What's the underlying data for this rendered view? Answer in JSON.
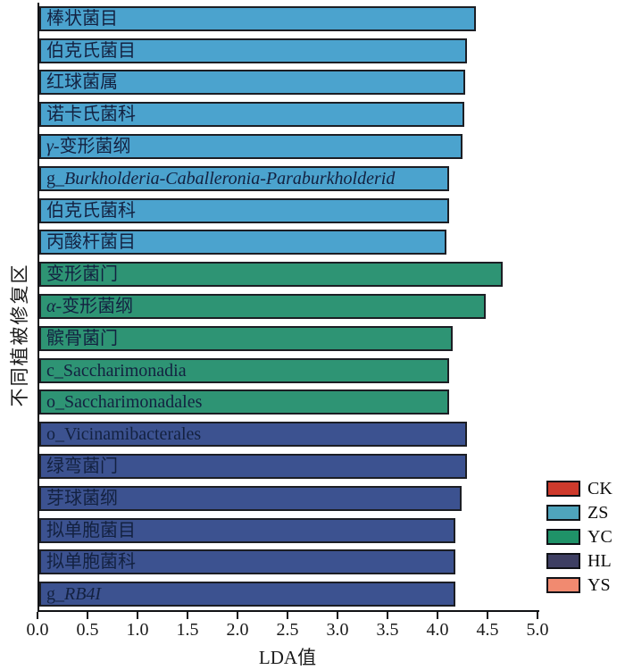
{
  "chart_data": {
    "type": "bar",
    "orientation": "horizontal",
    "title": "",
    "xlabel": "LDA值",
    "ylabel": "不同植被修复区",
    "xlim": [
      0.0,
      5.0
    ],
    "xtick_labels": [
      "0.0",
      "0.5",
      "1.0",
      "1.5",
      "2.0",
      "2.5",
      "3.0",
      "3.5",
      "4.0",
      "4.5",
      "5.0"
    ],
    "grid": false,
    "legend_position": "right-bottom",
    "group_bar_colors": {
      "ZS": "#4BA3CE",
      "YC": "#2E9474",
      "HL": "#3C5290"
    },
    "bars": [
      {
        "parts": [
          {
            "t": "棒状菌目",
            "i": false
          }
        ],
        "value": 4.37,
        "group": "ZS"
      },
      {
        "parts": [
          {
            "t": "伯克氏菌目",
            "i": false
          }
        ],
        "value": 4.28,
        "group": "ZS"
      },
      {
        "parts": [
          {
            "t": "红球菌属",
            "i": false
          }
        ],
        "value": 4.26,
        "group": "ZS"
      },
      {
        "parts": [
          {
            "t": "诺卡氏菌科",
            "i": false
          }
        ],
        "value": 4.25,
        "group": "ZS"
      },
      {
        "parts": [
          {
            "t": "γ-",
            "i": true
          },
          {
            "t": "变形菌纲",
            "i": false
          }
        ],
        "value": 4.23,
        "group": "ZS"
      },
      {
        "parts": [
          {
            "t": "g_",
            "i": false
          },
          {
            "t": "Burkholderia-Caballeronia-Paraburkholderid",
            "i": true
          }
        ],
        "value": 4.1,
        "group": "ZS"
      },
      {
        "parts": [
          {
            "t": "伯克氏菌科",
            "i": false
          }
        ],
        "value": 4.1,
        "group": "ZS"
      },
      {
        "parts": [
          {
            "t": "丙酸杆菌目",
            "i": false
          }
        ],
        "value": 4.07,
        "group": "ZS"
      },
      {
        "parts": [
          {
            "t": "变形菌门",
            "i": false
          }
        ],
        "value": 4.63,
        "group": "YC"
      },
      {
        "parts": [
          {
            "t": "α-",
            "i": true
          },
          {
            "t": "变形菌纲",
            "i": false
          }
        ],
        "value": 4.46,
        "group": "YC"
      },
      {
        "parts": [
          {
            "t": "髌骨菌门",
            "i": false
          }
        ],
        "value": 4.13,
        "group": "YC"
      },
      {
        "parts": [
          {
            "t": "c_Saccharimonadia",
            "i": false
          }
        ],
        "value": 4.1,
        "group": "YC"
      },
      {
        "parts": [
          {
            "t": "o_Saccharimonadales",
            "i": false
          }
        ],
        "value": 4.1,
        "group": "YC"
      },
      {
        "parts": [
          {
            "t": "o_Vicinamibacterales",
            "i": false
          }
        ],
        "value": 4.28,
        "group": "HL"
      },
      {
        "parts": [
          {
            "t": "绿弯菌门",
            "i": false
          }
        ],
        "value": 4.28,
        "group": "HL"
      },
      {
        "parts": [
          {
            "t": "芽球菌纲",
            "i": false
          }
        ],
        "value": 4.22,
        "group": "HL"
      },
      {
        "parts": [
          {
            "t": "拟单胞菌目",
            "i": false
          }
        ],
        "value": 4.16,
        "group": "HL"
      },
      {
        "parts": [
          {
            "t": "拟单胞菌科",
            "i": false
          }
        ],
        "value": 4.16,
        "group": "HL"
      },
      {
        "parts": [
          {
            "t": "g_",
            "i": false
          },
          {
            "t": "RB4I",
            "i": true
          }
        ],
        "value": 4.16,
        "group": "HL"
      }
    ],
    "legend": [
      {
        "label": "CK",
        "color": "#CE3A2C"
      },
      {
        "label": "ZS",
        "color": "#4FA4BC"
      },
      {
        "label": "YC",
        "color": "#1F9268"
      },
      {
        "label": "HL",
        "color": "#3E3F63"
      },
      {
        "label": "YS",
        "color": "#F18A70"
      }
    ]
  }
}
